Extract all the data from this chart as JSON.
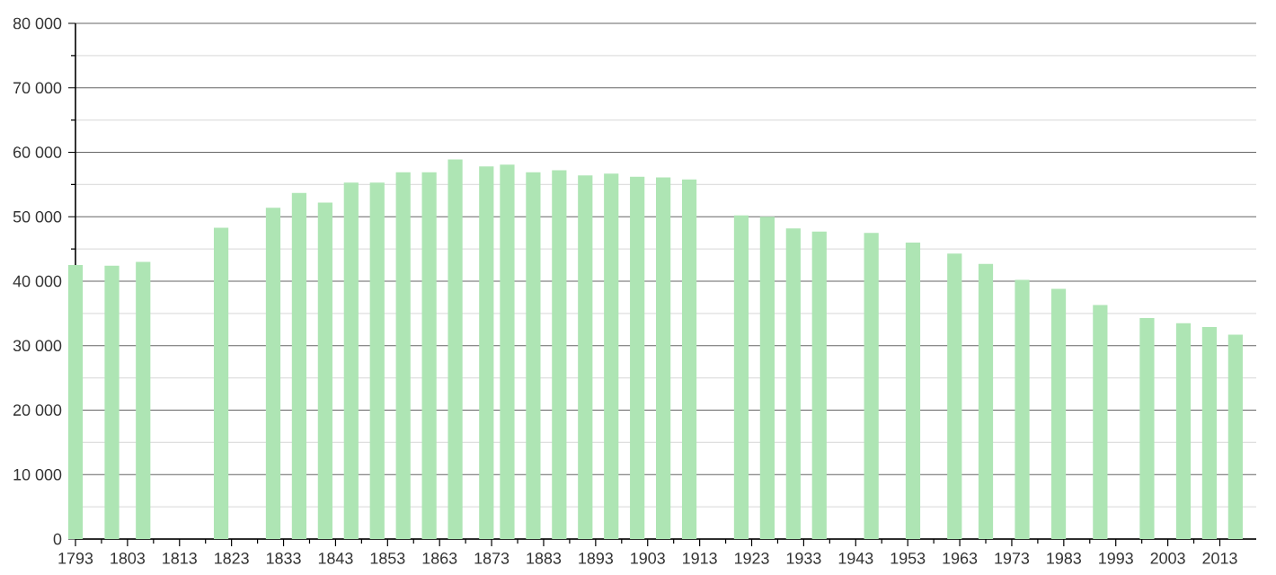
{
  "chart_data": {
    "type": "bar",
    "x": [
      1793,
      1800,
      1806,
      1821,
      1831,
      1836,
      1841,
      1846,
      1851,
      1856,
      1861,
      1866,
      1872,
      1876,
      1881,
      1886,
      1891,
      1896,
      1901,
      1906,
      1911,
      1921,
      1926,
      1931,
      1936,
      1946,
      1954,
      1962,
      1968,
      1975,
      1982,
      1990,
      1999,
      2006,
      2011,
      2016
    ],
    "values": [
      42500,
      42400,
      43000,
      48300,
      51400,
      53700,
      52200,
      55300,
      55300,
      56900,
      56900,
      58900,
      57800,
      58100,
      56900,
      57200,
      56400,
      56700,
      56200,
      56100,
      55800,
      50200,
      50000,
      48200,
      47700,
      47500,
      46000,
      44300,
      42700,
      40200,
      38800,
      36300,
      34300,
      33500,
      32900,
      31700
    ],
    "color": "#aee5b4",
    "xlim": [
      1793,
      2020
    ],
    "xticks": [
      1793,
      1803,
      1813,
      1823,
      1833,
      1843,
      1853,
      1863,
      1873,
      1883,
      1893,
      1903,
      1913,
      1923,
      1933,
      1943,
      1953,
      1963,
      1973,
      1983,
      1993,
      2003,
      2013
    ],
    "ylim": [
      0,
      80000
    ],
    "yticks": [
      {
        "value": 0,
        "label": "0"
      },
      {
        "value": 10000,
        "label": "10 000"
      },
      {
        "value": 20000,
        "label": "20 000"
      },
      {
        "value": 30000,
        "label": "30 000"
      },
      {
        "value": 40000,
        "label": "40 000"
      },
      {
        "value": 50000,
        "label": "50 000"
      },
      {
        "value": 60000,
        "label": "60 000"
      },
      {
        "value": 70000,
        "label": "70 000"
      },
      {
        "value": 80000,
        "label": "80 000"
      }
    ],
    "grid": "y"
  }
}
